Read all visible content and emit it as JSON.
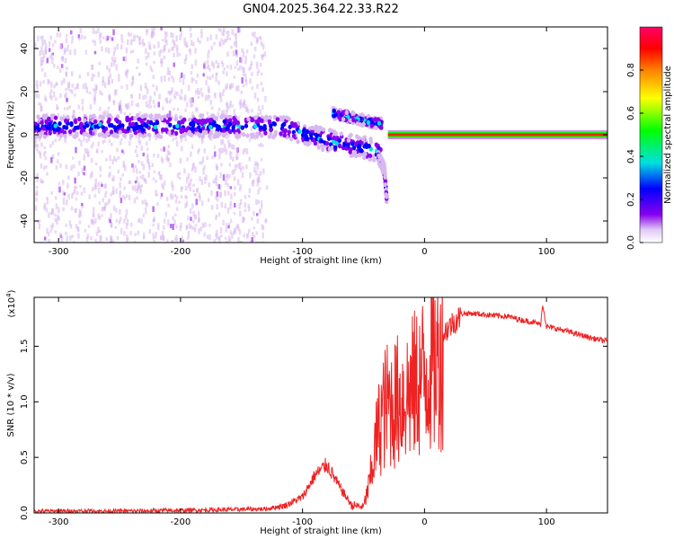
{
  "figure_title": "GN04.2025.364.22.33.R22",
  "chart_data": [
    {
      "type": "heatmap",
      "title": "GN04.2025.364.22.33.R22",
      "xlabel": "Height of straight line (km)",
      "ylabel": "Frequency (Hz)",
      "xlim": [
        -320,
        150
      ],
      "ylim": [
        -50,
        50
      ],
      "xticks": [
        -300,
        -200,
        -100,
        0,
        100
      ],
      "yticks": [
        -40,
        -20,
        0,
        20,
        40
      ],
      "colorbar": {
        "label": "Normalized spectral amplitude",
        "range": [
          0.0,
          1.0
        ],
        "ticks": [
          0.0,
          0.2,
          0.4,
          0.6,
          0.8
        ],
        "colors": [
          "#ffffff",
          "#d8b8f0",
          "#8800ee",
          "#0000ff",
          "#00e0e0",
          "#00ff00",
          "#ffff00",
          "#ff8000",
          "#ff0000",
          "#ff0066"
        ]
      },
      "features": [
        {
          "name": "scattered noise",
          "x_range": [
            -320,
            -130
          ],
          "freq_range": [
            -50,
            50
          ],
          "amplitude": 0.1
        },
        {
          "name": "main band",
          "x": [
            -320,
            -250,
            -200,
            -130,
            -110,
            -90,
            -70,
            -50,
            -35
          ],
          "freq": [
            4,
            4,
            4,
            4,
            3,
            -1,
            -4,
            -6,
            -8
          ],
          "amplitude": 0.35
        },
        {
          "name": "upper branch",
          "x": [
            -75,
            -60,
            -45,
            -35
          ],
          "freq": [
            10,
            8,
            6,
            5
          ],
          "amplitude": 0.4
        },
        {
          "name": "lower tail",
          "x": [
            -38,
            -33,
            -31
          ],
          "freq": [
            -10,
            -16,
            -30
          ],
          "amplitude": 0.25
        },
        {
          "name": "carrier line",
          "x": [
            -30,
            150
          ],
          "freq": [
            0,
            0
          ],
          "amplitude": 0.95
        }
      ]
    },
    {
      "type": "line",
      "xlabel": "Height of straight line (km)",
      "ylabel": "SNR (10 * v/v)",
      "y_scale_label": "(x10",
      "y_scale_exponent": "4",
      "xlim": [
        -320,
        150
      ],
      "ylim": [
        0.0,
        1.94
      ],
      "xticks": [
        -300,
        -200,
        -100,
        0,
        100
      ],
      "yticks": [
        0.0,
        0.5,
        1.0,
        1.5
      ],
      "ytick_labels": [
        "0.0",
        "0.5",
        "1.0",
        "1.5"
      ],
      "color": "#ee2222",
      "series": [
        {
          "name": "SNR",
          "x": [
            -320,
            -250,
            -180,
            -130,
            -115,
            -100,
            -90,
            -80,
            -70,
            -60,
            -50,
            -45,
            -40,
            -35,
            -30,
            -25,
            -20,
            -10,
            0,
            10,
            20,
            30,
            40,
            50,
            60,
            70,
            80,
            90,
            95,
            97,
            100,
            110,
            120,
            130,
            140,
            150
          ],
          "y": [
            0.02,
            0.02,
            0.03,
            0.04,
            0.07,
            0.15,
            0.35,
            0.45,
            0.25,
            0.08,
            0.06,
            0.3,
            0.7,
            1.0,
            1.1,
            1.1,
            1.15,
            1.25,
            1.4,
            1.55,
            1.7,
            1.8,
            1.8,
            1.79,
            1.78,
            1.77,
            1.74,
            1.72,
            1.7,
            1.88,
            1.68,
            1.66,
            1.63,
            1.6,
            1.57,
            1.55
          ]
        }
      ]
    }
  ]
}
